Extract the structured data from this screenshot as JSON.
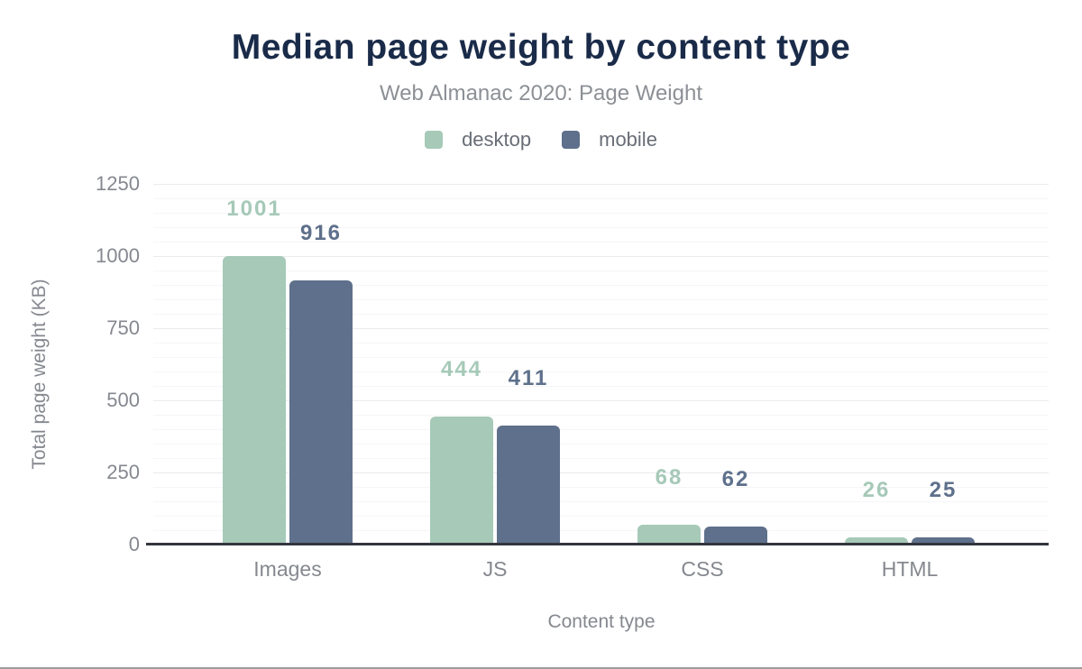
{
  "chart_data": {
    "type": "bar",
    "title": "Median page weight by content type",
    "subtitle": "Web Almanac 2020: Page Weight",
    "categories": [
      "Images",
      "JS",
      "CSS",
      "HTML"
    ],
    "series": [
      {
        "name": "desktop",
        "color": "#a6c9b8",
        "values": [
          1001,
          444,
          68,
          26
        ]
      },
      {
        "name": "mobile",
        "color": "#5e708b",
        "values": [
          916,
          411,
          62,
          25
        ]
      }
    ],
    "xlabel": "Content type",
    "ylabel": "Total page weight (KB)",
    "ylim": [
      0,
      1250
    ],
    "yticks": [
      0,
      250,
      500,
      750,
      1000,
      1250
    ],
    "minor_grid_step": 50,
    "major_grid_step": 250,
    "grid": true,
    "legend_position": "top",
    "value_labels": true
  },
  "colors": {
    "title": "#1a2b49",
    "subtitle": "#8c9095",
    "axis_text": "#85888f",
    "legend_text": "#686d76",
    "axis_line": "#33363e",
    "grid_major": "#ebebee",
    "grid_minor": "#f6f6f8",
    "bottom_rule": "#9c9c9c"
  }
}
